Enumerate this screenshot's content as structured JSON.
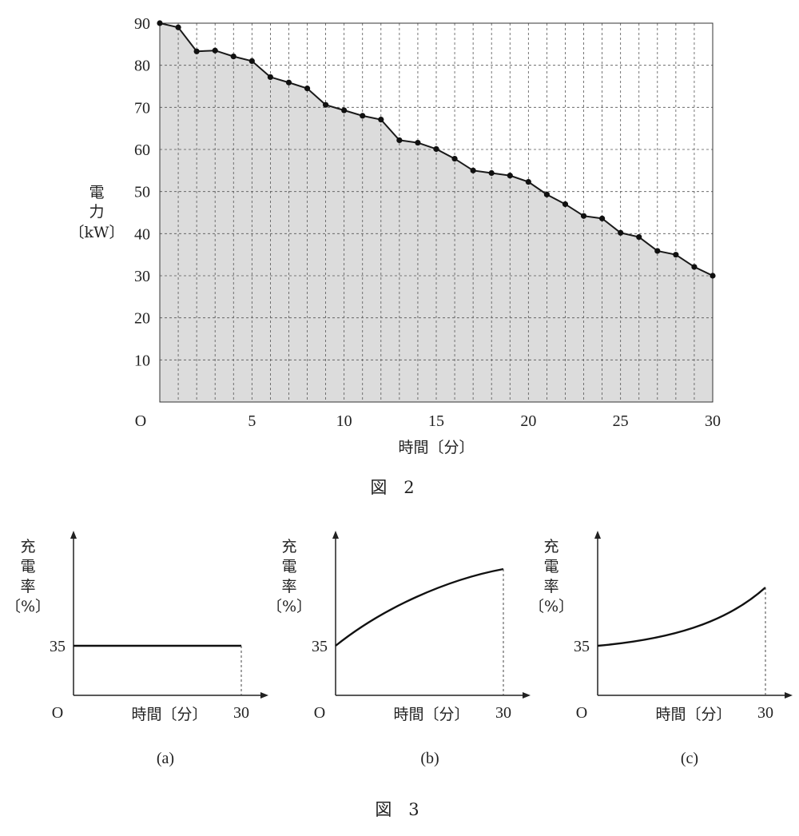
{
  "figure2": {
    "caption": "図　2",
    "ylabel_lines": [
      "電",
      "力",
      "〔kW〕"
    ],
    "xlabel": "時間〔分〕",
    "origin_label": "O",
    "y_tick_labels": [
      "10",
      "20",
      "30",
      "40",
      "50",
      "60",
      "70",
      "80",
      "90"
    ],
    "x_tick_labels": [
      "5",
      "10",
      "15",
      "20",
      "25",
      "30"
    ]
  },
  "chart_data": [
    {
      "type": "area",
      "title": "",
      "xlabel": "時間〔分〕",
      "ylabel": "電力〔kW〕",
      "xlim": [
        0,
        30
      ],
      "ylim": [
        0,
        90
      ],
      "grid": true,
      "x": [
        0,
        1,
        2,
        3,
        4,
        5,
        6,
        7,
        8,
        9,
        10,
        11,
        12,
        13,
        14,
        15,
        16,
        17,
        18,
        19,
        20,
        21,
        22,
        23,
        24,
        25,
        26,
        27,
        28,
        29,
        30
      ],
      "values": [
        90,
        89,
        83.3,
        83.5,
        82.1,
        81,
        77.2,
        75.9,
        74.5,
        70.6,
        69.3,
        68,
        67.1,
        62.2,
        61.6,
        60.1,
        57.8,
        55,
        54.4,
        53.8,
        52.3,
        49.3,
        47,
        44.2,
        43.6,
        40.2,
        39.2,
        35.9,
        35,
        32.1,
        30
      ],
      "fill_color": "#dcdcdc",
      "line_color": "#1a1a1a"
    },
    {
      "type": "line",
      "panel_label": "(a)",
      "ylabel": "充電率〔%〕",
      "xlabel": "時間〔分〕",
      "x_end_label": "30",
      "y_start_label": "35",
      "x": [
        0,
        30
      ],
      "values": [
        35,
        35
      ],
      "shape": "constant"
    },
    {
      "type": "line",
      "panel_label": "(b)",
      "ylabel": "充電率〔%〕",
      "xlabel": "時間〔分〕",
      "x_end_label": "30",
      "y_start_label": "35",
      "shape": "concave increasing from 35"
    },
    {
      "type": "line",
      "panel_label": "(c)",
      "ylabel": "充電率〔%〕",
      "xlabel": "時間〔分〕",
      "x_end_label": "30",
      "y_start_label": "35",
      "shape": "convex increasing from 35"
    }
  ],
  "figure3": {
    "caption": "図　3",
    "ylabel_lines": [
      "充",
      "電",
      "率",
      "〔%〕"
    ],
    "xlabel": "時間〔分〕",
    "origin_label": "O",
    "x_end_label": "30",
    "y_start_label": "35",
    "panels": [
      "(a)",
      "(b)",
      "(c)"
    ]
  }
}
